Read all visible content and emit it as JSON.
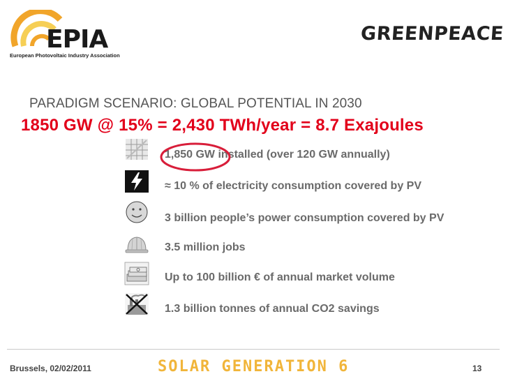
{
  "header": {
    "epia_logo_text": "EPIA",
    "epia_subtitle": "European Photovoltaic Industry Association",
    "greenpeace_logo_text": "GREENPEACE",
    "colors": {
      "epia_orange": "#f1a52a",
      "epia_yellow": "#f6cf55"
    }
  },
  "slide": {
    "subtitle": "PARADIGM SCENARIO: GLOBAL POTENTIAL IN 2030",
    "heading": "1850 GW @ 15% = 2,430 TWh/year = 8.7 Exajoules",
    "heading_color": "#e2001a",
    "items": [
      {
        "icon": "solar-panel-icon",
        "text": "1,850 GW installed (over 120 GW annually)"
      },
      {
        "icon": "lightning-bolt-icon",
        "text": "≈ 10 % of electricity consumption covered by PV"
      },
      {
        "icon": "smiley-face-icon",
        "text": "3 billion people’s power consumption covered by PV"
      },
      {
        "icon": "hard-hat-icon",
        "text": "3.5 million jobs"
      },
      {
        "icon": "money-stack-icon",
        "text": "Up to 100 billion € of annual market volume"
      },
      {
        "icon": "crossed-factory-icon",
        "text": "1.3 billion tonnes of annual CO2 savings"
      }
    ]
  },
  "footer": {
    "date": "Brussels, 02/02/2011",
    "brand": "SOLAR GENERATION 6",
    "page_number": "13"
  }
}
